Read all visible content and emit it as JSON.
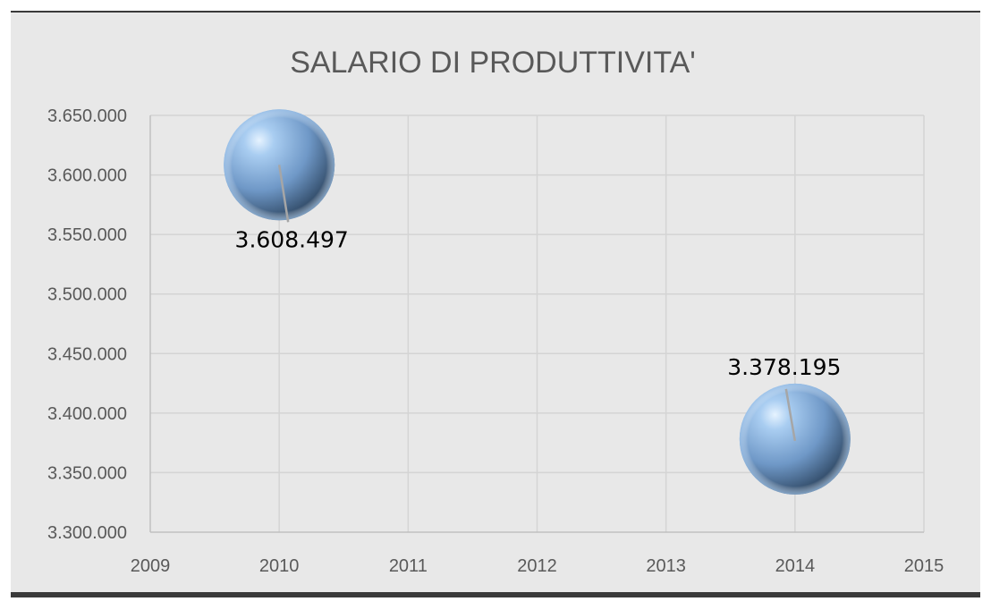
{
  "chart_data": {
    "type": "bubble",
    "title": "SALARIO DI PRODUTTIVITA'",
    "xlabel": "",
    "ylabel": "",
    "xlim": [
      2009,
      2015
    ],
    "ylim": [
      3300000,
      3650000
    ],
    "x_ticks": [
      2009,
      2010,
      2011,
      2012,
      2013,
      2014,
      2015
    ],
    "x_tick_labels": [
      "2009",
      "2010",
      "2011",
      "2012",
      "2013",
      "2014",
      "2015"
    ],
    "y_ticks": [
      3300000,
      3350000,
      3400000,
      3450000,
      3500000,
      3550000,
      3600000,
      3650000
    ],
    "y_tick_labels": [
      "3.300.000",
      "3.350.000",
      "3.400.000",
      "3.450.000",
      "3.500.000",
      "3.550.000",
      "3.600.000",
      "3.650.000"
    ],
    "grid": true,
    "legend": "none",
    "points": [
      {
        "x": 2010,
        "y": 3608497,
        "label": "3.608.497",
        "label_position": "below"
      },
      {
        "x": 2014,
        "y": 3378195,
        "label": "3.378.195",
        "label_position": "above"
      }
    ],
    "colors": {
      "background": "#e8e8e8",
      "bubble": "#7aa3cf",
      "text": "#595959",
      "gridline": "#d4d4d4"
    }
  }
}
